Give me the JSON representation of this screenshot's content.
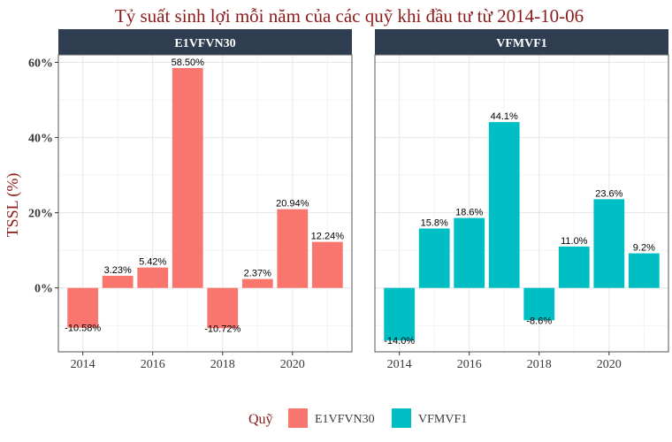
{
  "colors": {
    "title": "#8b1a1a",
    "strip_bg": "#2e3e50",
    "grid": "#e6e6e6",
    "panel_border": "#555555"
  },
  "chart_data": {
    "type": "bar",
    "title": "Tỷ suất sinh lợi mỗi năm của các quỹ khi đầu tư từ 2014-10-06",
    "ylabel": "TSSL (%)",
    "xlabel": "",
    "ylim": [
      -17,
      62
    ],
    "yticks": [
      0,
      20,
      40,
      60
    ],
    "ytick_labels": [
      "0%",
      "20%",
      "40%",
      "60%"
    ],
    "xlim": [
      2013.3,
      2021.7
    ],
    "xticks": [
      2014,
      2016,
      2018,
      2020
    ],
    "xtick_labels": [
      "2014",
      "2016",
      "2018",
      "2020"
    ],
    "legend_title": "Quỹ",
    "legend_position": "bottom",
    "panels": [
      {
        "name": "E1VFVN30",
        "color": "#f8766d",
        "x": [
          2014,
          2015,
          2016,
          2017,
          2018,
          2019,
          2020,
          2021
        ],
        "values": [
          -10.58,
          3.23,
          5.42,
          58.5,
          -10.72,
          2.37,
          20.94,
          12.24
        ],
        "labels": [
          "-10.58%",
          "3.23%",
          "5.42%",
          "58.50%",
          "-10.72%",
          "2.37%",
          "20.94%",
          "12.24%"
        ]
      },
      {
        "name": "VFMVF1",
        "color": "#00bfc4",
        "x": [
          2014,
          2015,
          2016,
          2017,
          2018,
          2019,
          2020,
          2021
        ],
        "values": [
          -14.0,
          15.8,
          18.6,
          44.1,
          -8.6,
          11.0,
          23.6,
          9.2
        ],
        "labels": [
          "-14.0%",
          "15.8%",
          "18.6%",
          "44.1%",
          "-8.6%",
          "11.0%",
          "23.6%",
          "9.2%"
        ]
      }
    ]
  }
}
